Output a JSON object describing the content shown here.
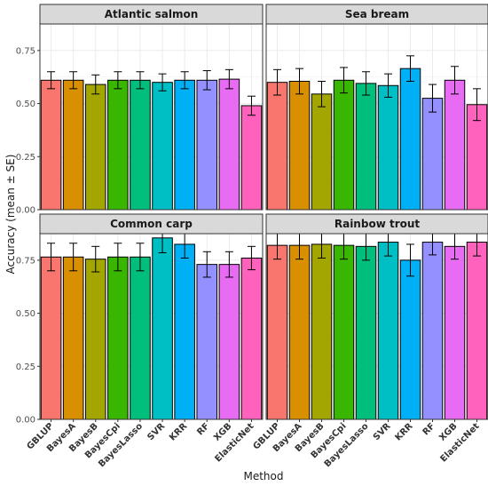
{
  "chart_data": {
    "type": "bar",
    "ylabel": "Accuracy (mean ± SE)",
    "xlabel": "Method",
    "categories": [
      "GBLUP",
      "BayesA",
      "BayesB",
      "BayesCpi",
      "BayesLasso",
      "SVR",
      "KRR",
      "RF",
      "XGB",
      "ElasticNet"
    ],
    "colors": [
      "#F8766D",
      "#D89000",
      "#A3A500",
      "#39B600",
      "#00BF7D",
      "#00BFC4",
      "#00B0F6",
      "#9590FF",
      "#E76BF3",
      "#FF62BC"
    ],
    "ylim": [
      0,
      0.875
    ],
    "y_ticks": [
      "0.00",
      "0.25",
      "0.50",
      "0.75"
    ],
    "grid": true,
    "facets": [
      {
        "title": "Atlantic salmon",
        "values": [
          0.61,
          0.61,
          0.59,
          0.61,
          0.61,
          0.6,
          0.61,
          0.61,
          0.615,
          0.49
        ],
        "errors": [
          0.04,
          0.04,
          0.045,
          0.04,
          0.04,
          0.04,
          0.04,
          0.045,
          0.045,
          0.045
        ]
      },
      {
        "title": "Sea bream",
        "values": [
          0.6,
          0.605,
          0.545,
          0.61,
          0.595,
          0.585,
          0.665,
          0.525,
          0.61,
          0.495
        ],
        "errors": [
          0.06,
          0.06,
          0.06,
          0.06,
          0.055,
          0.055,
          0.06,
          0.065,
          0.065,
          0.075
        ]
      },
      {
        "title": "Common carp",
        "values": [
          0.765,
          0.765,
          0.755,
          0.765,
          0.765,
          0.855,
          0.825,
          0.73,
          0.73,
          0.76
        ],
        "errors": [
          0.065,
          0.065,
          0.06,
          0.065,
          0.065,
          0.07,
          0.065,
          0.06,
          0.06,
          0.055
        ]
      },
      {
        "title": "Rainbow trout",
        "values": [
          0.82,
          0.82,
          0.825,
          0.82,
          0.815,
          0.835,
          0.75,
          0.835,
          0.815,
          0.835
        ],
        "errors": [
          0.065,
          0.065,
          0.065,
          0.065,
          0.065,
          0.065,
          0.075,
          0.06,
          0.06,
          0.065
        ]
      }
    ]
  }
}
